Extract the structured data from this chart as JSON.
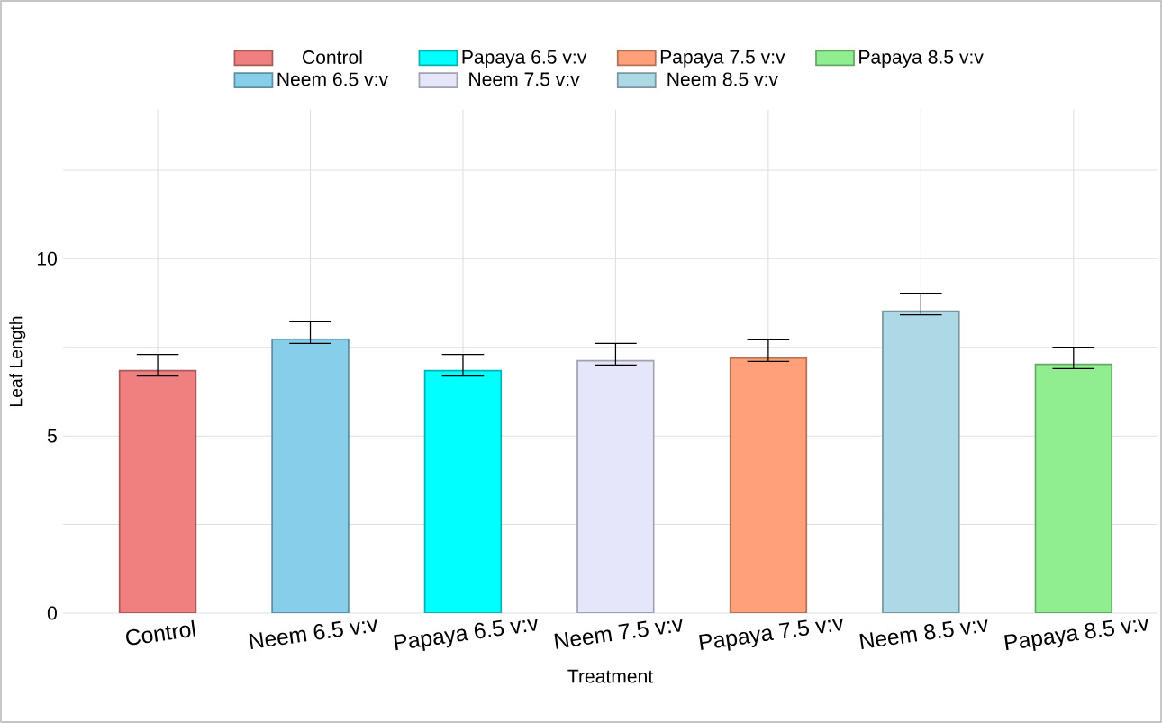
{
  "chart_data": {
    "type": "bar",
    "xlabel": "Treatment",
    "ylabel": "Leaf Length",
    "categories": [
      "Control",
      "Neem 6.5 v:v",
      "Papaya 6.5 v:v",
      "Neem 7.5 v:v",
      "Papaya 7.5 v:v",
      "Neem 8.5 v:v",
      "Papaya 8.5 v:v"
    ],
    "series": [
      {
        "name": "Control",
        "color": "#f08080",
        "values": [
          6.84,
          null,
          null,
          null,
          null,
          null,
          null
        ],
        "errors": [
          [
            6.69,
            7.3
          ],
          null,
          null,
          null,
          null,
          null,
          null
        ]
      },
      {
        "name": "Neem 6.5 v:v",
        "color": "#87ceeb",
        "values": [
          null,
          7.73,
          null,
          null,
          null,
          null,
          null
        ],
        "errors": [
          null,
          [
            7.61,
            8.22
          ],
          null,
          null,
          null,
          null,
          null
        ]
      },
      {
        "name": "Papaya 6.5 v:v",
        "color": "#00ffff",
        "values": [
          null,
          null,
          6.84,
          null,
          null,
          null,
          null
        ],
        "errors": [
          null,
          null,
          [
            6.69,
            7.3
          ],
          null,
          null,
          null,
          null
        ]
      },
      {
        "name": "Neem 7.5 v:v",
        "color": "#e6e6fa",
        "values": [
          null,
          null,
          null,
          7.12,
          null,
          null,
          null
        ],
        "errors": [
          null,
          null,
          null,
          [
            7.0,
            7.61
          ],
          null,
          null,
          null
        ]
      },
      {
        "name": "Papaya 7.5 v:v",
        "color": "#ffa07a",
        "values": [
          null,
          null,
          null,
          null,
          7.2,
          null,
          null
        ],
        "errors": [
          null,
          null,
          null,
          null,
          [
            7.1,
            7.71
          ],
          null,
          null
        ]
      },
      {
        "name": "Neem 8.5 v:v",
        "color": "#add8e6",
        "values": [
          null,
          null,
          null,
          null,
          null,
          8.52,
          null
        ],
        "errors": [
          null,
          null,
          null,
          null,
          null,
          [
            8.42,
            9.03
          ],
          null
        ]
      },
      {
        "name": "Papaya 8.5 v:v",
        "color": "#90ee90",
        "values": [
          null,
          null,
          null,
          null,
          null,
          null,
          7.02
        ],
        "errors": [
          null,
          null,
          null,
          null,
          null,
          null,
          [
            6.9,
            7.5
          ]
        ]
      }
    ],
    "ylim": [
      0,
      14.2
    ],
    "yticks": [
      0,
      {
        "value": 2.5,
        "label": null
      },
      5,
      {
        "value": 7.5,
        "label": null
      },
      10,
      {
        "value": 12.5,
        "label": null
      }
    ],
    "grid": true,
    "legend": "top"
  }
}
